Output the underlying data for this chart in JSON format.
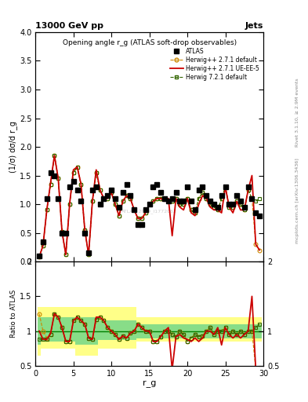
{
  "title_top_left": "13000 GeV pp",
  "title_top_right": "Jets",
  "plot_title": "Opening angle r_g (ATLAS soft-drop observables)",
  "xlabel": "r_g",
  "ylabel_main": "(1/σ) dσ/d r_g",
  "ylabel_ratio": "Ratio to ATLAS",
  "right_label_top": "Rivet 3.1.10, ≥ 2.9M events",
  "right_label_bottom": "mcplots.cern.ch [arXiv:1306.3436]",
  "watermark": "ATLAS_2019_I1772062",
  "atlas_x": [
    0.5,
    1.0,
    1.5,
    2.0,
    2.5,
    3.0,
    3.5,
    4.0,
    4.5,
    5.0,
    5.5,
    6.0,
    6.5,
    7.0,
    7.5,
    8.0,
    8.5,
    9.0,
    9.5,
    10.0,
    10.5,
    11.0,
    11.5,
    12.0,
    12.5,
    13.0,
    13.5,
    14.0,
    14.5,
    15.0,
    15.5,
    16.0,
    16.5,
    17.0,
    17.5,
    18.0,
    18.5,
    19.0,
    19.5,
    20.0,
    20.5,
    21.0,
    21.5,
    22.0,
    22.5,
    23.0,
    23.5,
    24.0,
    24.5,
    25.0,
    25.5,
    26.0,
    26.5,
    27.0,
    27.5,
    28.0,
    28.5,
    29.0,
    29.5
  ],
  "atlas_y": [
    0.1,
    0.35,
    1.1,
    1.55,
    1.5,
    1.1,
    0.5,
    0.5,
    1.3,
    1.4,
    1.25,
    1.05,
    0.5,
    0.15,
    1.25,
    1.3,
    1.0,
    1.1,
    1.15,
    1.25,
    1.1,
    0.95,
    1.2,
    1.35,
    1.15,
    0.9,
    0.65,
    0.65,
    0.9,
    1.0,
    1.3,
    1.35,
    1.2,
    1.1,
    1.05,
    1.1,
    1.2,
    1.05,
    1.05,
    1.3,
    1.05,
    0.9,
    1.25,
    1.3,
    1.15,
    1.05,
    1.0,
    0.95,
    1.15,
    1.3,
    1.0,
    1.0,
    1.15,
    1.05,
    0.95,
    1.3,
    1.1,
    0.85,
    0.8
  ],
  "herwig271_x": [
    0.5,
    1.0,
    1.5,
    2.0,
    2.5,
    3.0,
    3.5,
    4.0,
    4.5,
    5.0,
    5.5,
    6.0,
    6.5,
    7.0,
    7.5,
    8.0,
    8.5,
    9.0,
    9.5,
    10.0,
    10.5,
    11.0,
    11.5,
    12.0,
    12.5,
    13.0,
    13.5,
    14.0,
    14.5,
    15.0,
    15.5,
    16.0,
    16.5,
    17.0,
    17.5,
    18.0,
    18.5,
    19.0,
    19.5,
    20.0,
    20.5,
    21.0,
    21.5,
    22.0,
    22.5,
    23.0,
    23.5,
    24.0,
    24.5,
    25.0,
    25.5,
    26.0,
    26.5,
    27.0,
    27.5,
    28.0,
    28.5,
    29.0,
    29.5
  ],
  "herwig271_y": [
    0.08,
    0.28,
    0.9,
    1.35,
    1.85,
    1.45,
    0.52,
    0.12,
    1.0,
    1.55,
    1.65,
    1.35,
    0.55,
    0.12,
    1.05,
    1.55,
    1.25,
    1.1,
    1.1,
    1.2,
    1.0,
    0.8,
    1.05,
    1.15,
    1.1,
    0.9,
    0.75,
    0.75,
    0.85,
    1.0,
    1.05,
    1.1,
    1.1,
    1.1,
    1.05,
    1.05,
    1.1,
    1.0,
    1.0,
    1.1,
    0.9,
    0.85,
    1.1,
    1.2,
    1.1,
    1.0,
    0.95,
    0.9,
    1.1,
    1.3,
    0.95,
    0.95,
    1.05,
    1.0,
    0.9,
    1.25,
    1.1,
    0.3,
    0.2
  ],
  "herwig271ueee5_x": [
    0.5,
    1.0,
    1.5,
    2.0,
    2.5,
    3.0,
    3.5,
    4.0,
    4.5,
    5.0,
    5.5,
    6.0,
    6.5,
    7.0,
    7.5,
    8.0,
    8.5,
    9.0,
    9.5,
    10.0,
    10.5,
    11.0,
    11.5,
    12.0,
    12.5,
    13.0,
    13.5,
    14.0,
    14.5,
    15.0,
    15.5,
    16.0,
    16.5,
    17.0,
    17.5,
    18.0,
    18.5,
    19.0,
    19.5,
    20.0,
    20.5,
    21.0,
    21.5,
    22.0,
    22.5,
    23.0,
    23.5,
    24.0,
    24.5,
    25.0,
    25.5,
    26.0,
    26.5,
    27.0,
    27.5,
    28.0,
    28.5,
    29.0,
    29.5
  ],
  "herwig271ueee5_y": [
    0.08,
    0.28,
    0.9,
    1.38,
    1.85,
    1.45,
    0.52,
    0.12,
    1.0,
    1.6,
    1.65,
    1.35,
    0.55,
    0.12,
    1.05,
    1.6,
    1.25,
    1.1,
    1.1,
    1.2,
    1.0,
    0.8,
    1.05,
    1.15,
    1.1,
    0.9,
    0.75,
    0.75,
    0.85,
    1.0,
    1.05,
    1.1,
    1.1,
    1.05,
    1.1,
    0.45,
    1.1,
    0.95,
    0.9,
    1.1,
    0.85,
    0.8,
    1.0,
    1.15,
    1.1,
    0.95,
    0.9,
    0.9,
    0.85,
    1.3,
    0.95,
    0.85,
    1.05,
    0.9,
    0.9,
    1.25,
    1.5,
    0.3,
    0.2
  ],
  "herwig721_x": [
    0.5,
    1.0,
    1.5,
    2.0,
    2.5,
    3.0,
    3.5,
    4.0,
    4.5,
    5.0,
    5.5,
    6.0,
    6.5,
    7.0,
    7.5,
    8.0,
    8.5,
    9.0,
    9.5,
    10.0,
    10.5,
    11.0,
    11.5,
    12.0,
    12.5,
    13.0,
    13.5,
    14.0,
    14.5,
    15.0,
    15.5,
    16.0,
    16.5,
    17.0,
    17.5,
    18.0,
    18.5,
    19.0,
    19.5,
    20.0,
    20.5,
    21.0,
    21.5,
    22.0,
    22.5,
    23.0,
    23.5,
    24.0,
    24.5,
    25.0,
    25.5,
    26.0,
    26.5,
    27.0,
    27.5,
    28.0,
    28.5,
    29.0,
    29.5
  ],
  "herwig721_y": [
    0.08,
    0.28,
    0.9,
    1.35,
    1.85,
    1.45,
    0.52,
    0.12,
    1.0,
    1.55,
    1.65,
    1.35,
    0.55,
    0.12,
    1.05,
    1.55,
    1.25,
    1.1,
    1.1,
    1.2,
    1.0,
    0.8,
    1.05,
    1.15,
    1.1,
    0.9,
    0.75,
    0.75,
    0.85,
    1.0,
    1.05,
    1.1,
    1.1,
    1.1,
    1.05,
    1.05,
    1.1,
    1.0,
    1.0,
    1.1,
    0.9,
    0.85,
    1.1,
    1.2,
    1.1,
    1.0,
    0.95,
    0.9,
    1.1,
    1.3,
    0.95,
    0.95,
    1.05,
    1.0,
    0.9,
    1.25,
    1.1,
    1.05,
    1.1
  ],
  "ratio_herwig271_y": [
    1.25,
    1.0,
    0.9,
    0.95,
    1.25,
    1.2,
    1.05,
    0.85,
    0.85,
    1.15,
    1.2,
    1.15,
    1.1,
    0.9,
    0.88,
    1.17,
    1.2,
    1.15,
    1.05,
    1.0,
    0.95,
    0.88,
    0.93,
    0.9,
    0.97,
    1.0,
    1.1,
    1.05,
    1.0,
    1.0,
    0.85,
    0.85,
    0.92,
    1.0,
    1.0,
    0.95,
    0.92,
    1.0,
    0.95,
    0.85,
    0.9,
    0.95,
    0.92,
    0.93,
    1.0,
    1.05,
    0.95,
    1.0,
    1.0,
    1.05,
    0.95,
    1.0,
    0.95,
    1.0,
    0.95,
    1.0,
    1.0,
    0.45,
    0.4
  ],
  "ratio_herwig271ueee5_y": [
    1.0,
    0.88,
    0.88,
    0.97,
    1.25,
    1.2,
    1.05,
    0.85,
    0.85,
    1.15,
    1.2,
    1.15,
    1.1,
    0.9,
    0.88,
    1.2,
    1.2,
    1.15,
    1.05,
    1.0,
    0.95,
    0.88,
    0.93,
    0.9,
    0.97,
    1.0,
    1.1,
    1.05,
    1.0,
    1.0,
    0.85,
    0.85,
    0.92,
    1.0,
    1.05,
    0.45,
    0.92,
    0.95,
    0.9,
    0.88,
    0.85,
    0.9,
    0.85,
    0.9,
    1.0,
    1.0,
    0.95,
    1.05,
    0.8,
    1.05,
    0.95,
    0.9,
    0.95,
    0.9,
    0.95,
    1.0,
    1.5,
    0.45,
    0.4
  ],
  "ratio_herwig721_y": [
    0.88,
    0.88,
    0.88,
    0.95,
    1.25,
    1.2,
    1.05,
    0.85,
    0.85,
    1.15,
    1.2,
    1.15,
    1.1,
    0.9,
    0.88,
    1.17,
    1.2,
    1.15,
    1.05,
    1.0,
    0.95,
    0.88,
    0.93,
    0.9,
    0.97,
    1.0,
    1.1,
    1.05,
    1.0,
    1.0,
    0.85,
    0.85,
    0.92,
    1.0,
    1.0,
    0.95,
    0.92,
    1.0,
    0.95,
    0.85,
    0.9,
    0.95,
    0.92,
    0.93,
    1.0,
    1.05,
    0.95,
    1.0,
    1.0,
    1.05,
    0.95,
    1.0,
    0.95,
    1.0,
    0.95,
    1.0,
    1.0,
    1.05,
    1.1
  ],
  "band_yellow_lo": [
    0.65,
    0.75,
    0.75,
    0.75,
    0.75,
    0.75,
    0.75,
    0.75,
    0.75,
    0.75,
    0.65,
    0.65,
    0.65,
    0.65,
    0.65,
    0.65,
    0.75,
    0.75,
    0.75,
    0.75,
    0.75,
    0.75,
    0.75,
    0.75,
    0.75,
    0.75,
    0.85,
    0.85,
    0.85,
    0.85,
    0.85,
    0.85,
    0.85,
    0.85,
    0.85,
    0.85,
    0.85,
    0.85,
    0.85,
    0.85,
    0.85,
    0.85,
    0.85,
    0.85,
    0.85,
    0.85,
    0.85,
    0.85,
    0.85,
    0.85,
    0.85,
    0.85,
    0.85,
    0.85,
    0.85,
    0.85,
    0.85,
    0.85,
    0.85
  ],
  "band_yellow_hi": [
    1.35,
    1.35,
    1.35,
    1.35,
    1.35,
    1.35,
    1.35,
    1.35,
    1.35,
    1.35,
    1.35,
    1.35,
    1.35,
    1.35,
    1.35,
    1.35,
    1.35,
    1.35,
    1.35,
    1.35,
    1.35,
    1.35,
    1.35,
    1.35,
    1.35,
    1.35,
    1.2,
    1.2,
    1.2,
    1.2,
    1.2,
    1.2,
    1.2,
    1.2,
    1.2,
    1.2,
    1.2,
    1.2,
    1.2,
    1.2,
    1.2,
    1.2,
    1.2,
    1.2,
    1.2,
    1.2,
    1.2,
    1.2,
    1.2,
    1.2,
    1.2,
    1.2,
    1.2,
    1.2,
    1.2,
    1.2,
    1.2,
    1.2,
    1.2
  ],
  "band_green_lo": [
    0.8,
    0.85,
    0.85,
    0.85,
    0.85,
    0.85,
    0.85,
    0.85,
    0.85,
    0.85,
    0.8,
    0.8,
    0.8,
    0.8,
    0.8,
    0.8,
    0.87,
    0.87,
    0.87,
    0.87,
    0.87,
    0.87,
    0.87,
    0.87,
    0.87,
    0.87,
    0.9,
    0.9,
    0.9,
    0.9,
    0.9,
    0.9,
    0.9,
    0.9,
    0.9,
    0.9,
    0.9,
    0.9,
    0.9,
    0.9,
    0.9,
    0.9,
    0.9,
    0.9,
    0.9,
    0.9,
    0.9,
    0.9,
    0.9,
    0.9,
    0.9,
    0.9,
    0.9,
    0.9,
    0.9,
    0.9,
    0.9,
    0.9,
    0.9
  ],
  "band_green_hi": [
    1.2,
    1.2,
    1.2,
    1.2,
    1.2,
    1.2,
    1.2,
    1.2,
    1.2,
    1.2,
    1.2,
    1.2,
    1.2,
    1.2,
    1.2,
    1.2,
    1.15,
    1.15,
    1.15,
    1.15,
    1.15,
    1.15,
    1.15,
    1.15,
    1.15,
    1.15,
    1.1,
    1.1,
    1.1,
    1.1,
    1.1,
    1.1,
    1.1,
    1.1,
    1.1,
    1.1,
    1.1,
    1.1,
    1.1,
    1.1,
    1.1,
    1.1,
    1.1,
    1.1,
    1.1,
    1.1,
    1.1,
    1.1,
    1.1,
    1.1,
    1.1,
    1.1,
    1.1,
    1.1,
    1.1,
    1.1,
    1.1,
    1.1,
    1.1
  ],
  "color_atlas": "#000000",
  "color_herwig271": "#cc8800",
  "color_herwig271ueee5": "#cc0000",
  "color_herwig721": "#336600",
  "color_yellow": "#ffff88",
  "color_green": "#88dd88",
  "ylim_main": [
    0,
    4
  ],
  "ylim_ratio": [
    0.5,
    2.0
  ],
  "xlim": [
    0,
    30
  ],
  "main_yticks": [
    0,
    0.5,
    1.0,
    1.5,
    2.0,
    2.5,
    3.0,
    3.5,
    4.0
  ],
  "ratio_yticks": [
    0.5,
    1.0,
    1.5,
    2.0
  ],
  "ratio_yticklabels": [
    "0.5",
    "1",
    "1.5",
    "2"
  ]
}
